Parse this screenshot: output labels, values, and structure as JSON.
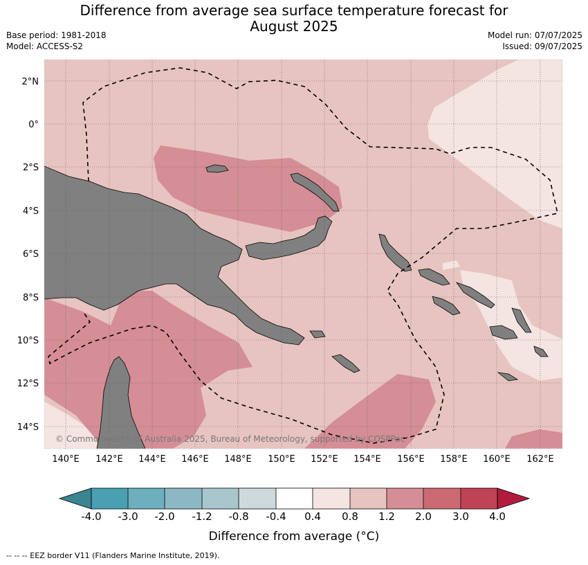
{
  "title": "Difference from average sea surface temperature forecast for August 2025",
  "title_line1": "Difference from average sea surface temperature forecast for",
  "title_line2": "August 2025",
  "base_period": "Base period: 1981-2018",
  "model": "Model: ACCESS-S2",
  "model_run": "Model run: 07/07/2025",
  "issued": "Issued: 09/07/2025",
  "copyright": "© Commonwealth of Australia 2025, Bureau of Meteorology, supported by COSPPac",
  "lat_labels": [
    "2°N",
    "0°",
    "2°S",
    "4°S",
    "6°S",
    "8°S",
    "10°S",
    "12°S",
    "14°S"
  ],
  "lon_labels": [
    "140°E",
    "142°E",
    "144°E",
    "146°E",
    "148°E",
    "150°E",
    "152°E",
    "154°E",
    "156°E",
    "158°E",
    "160°E",
    "162°E"
  ],
  "colorbar": {
    "labels": [
      "-4.0",
      "-3.0",
      "-2.0",
      "-1.2",
      "-0.8",
      "-0.4",
      "0.4",
      "0.8",
      "1.2",
      "2.0",
      "3.0",
      "4.0"
    ],
    "colors": {
      "below_min": "#3b8591",
      "c1": "#4aa0b2",
      "c2": "#6eafbf",
      "c3": "#8cb8c3",
      "c4": "#a8c6cb",
      "c5": "#ccd9dd",
      "c6": "#ffffff",
      "c7": "#f4e4e2",
      "c8": "#e7c4c0",
      "c9": "#d58e95",
      "c10": "#cb6a72",
      "c11": "#bf4354",
      "above_max": "#b11c3c"
    },
    "axis_label": "Difference from average (°C)"
  },
  "land_color": "#808080",
  "eez_legend": "--  --  -- EEZ border V11 (Flanders Marine Institute, 2019)."
}
